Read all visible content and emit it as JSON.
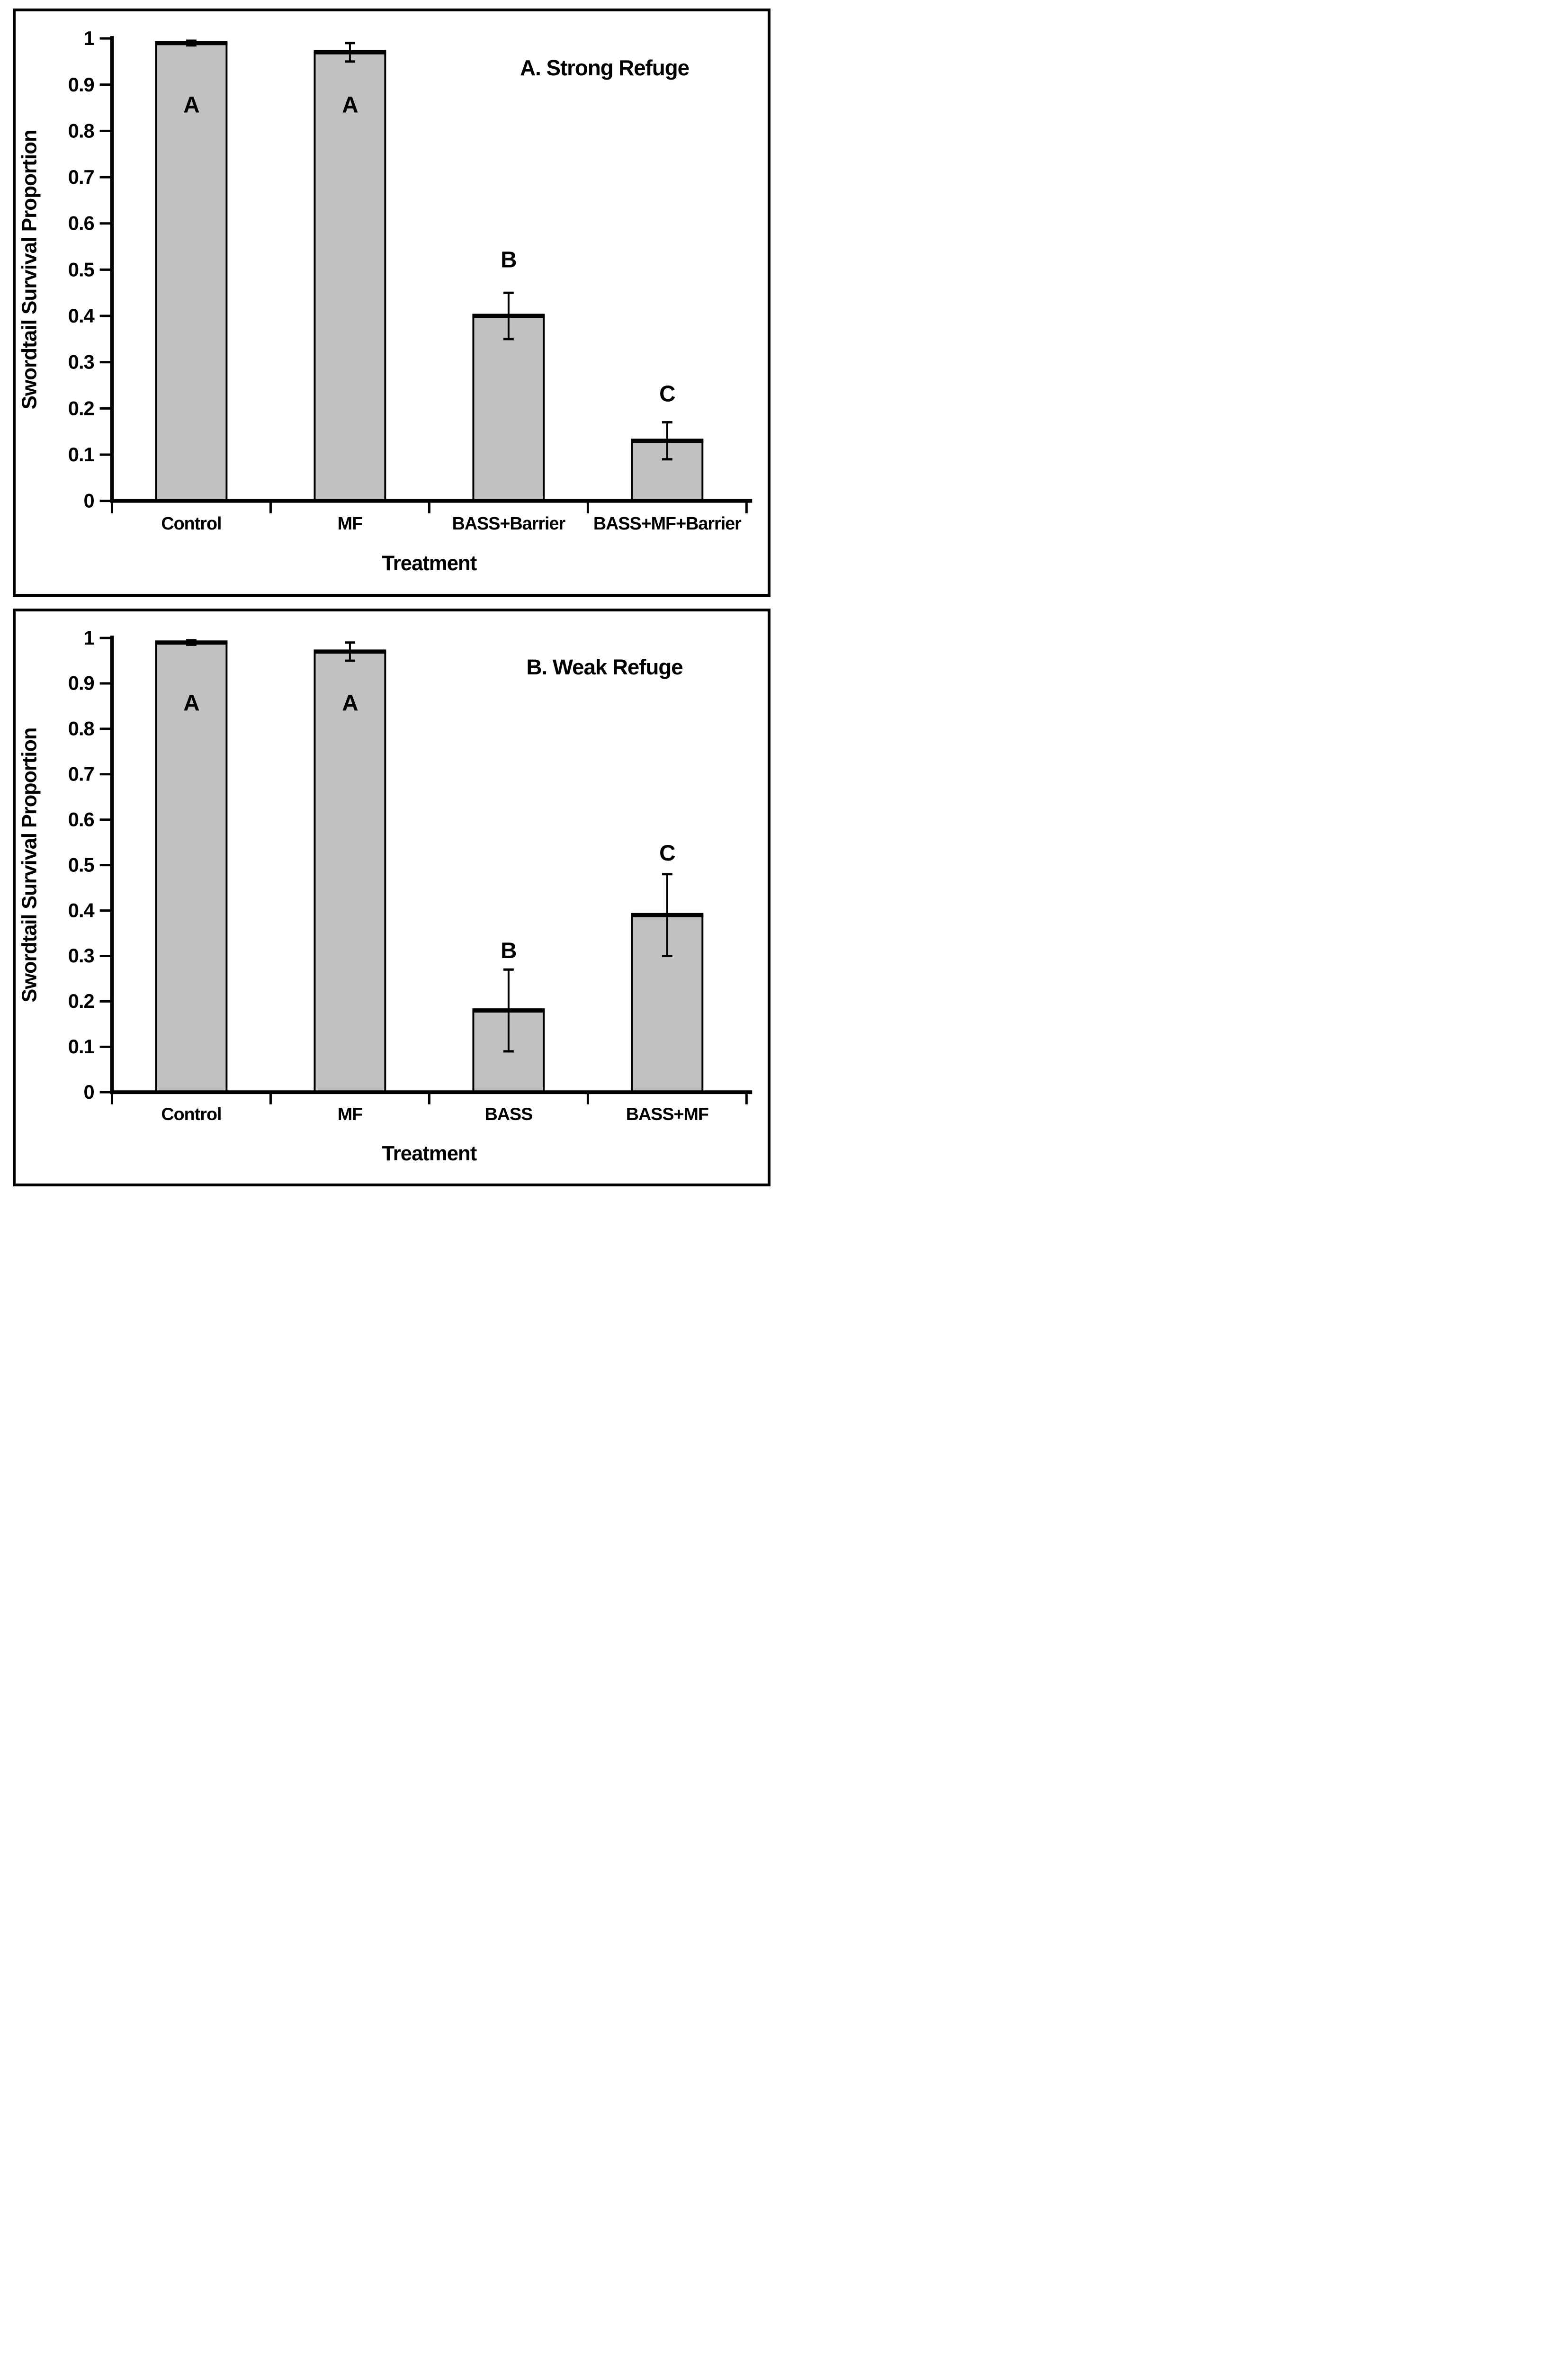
{
  "figure": {
    "background": "#ffffff",
    "colors": {
      "bar_fill": "#c1c1c3",
      "bar_stroke": "#000000",
      "axis": "#000000",
      "text": "#000000"
    }
  },
  "chart_data": [
    {
      "type": "bar",
      "panel_label": "A. Strong Refuge",
      "xlabel": "Treatment",
      "ylabel": "Swordtail Survival Proportion",
      "ylim": [
        0,
        1
      ],
      "grid": false,
      "yticks": [
        "0",
        "0.1",
        "0.2",
        "0.3",
        "0.4",
        "0.5",
        "0.6",
        "0.7",
        "0.8",
        "0.9",
        "1"
      ],
      "categories": [
        "Control",
        "MF",
        "BASS+Barrier",
        "BASS+MF+Barrier"
      ],
      "values": [
        0.99,
        0.97,
        0.4,
        0.13
      ],
      "error_upper": [
        0.995,
        0.99,
        0.45,
        0.17
      ],
      "error_lower": [
        0.985,
        0.95,
        0.35,
        0.09
      ],
      "sig_letters": [
        "A",
        "A",
        "B",
        "C"
      ],
      "sig_letter_baseline": [
        0.84,
        0.84,
        0.505,
        0.215
      ]
    },
    {
      "type": "bar",
      "panel_label": "B. Weak Refuge",
      "xlabel": "Treatment",
      "ylabel": "Swordtail Survival Proportion",
      "ylim": [
        0,
        1
      ],
      "grid": false,
      "yticks": [
        "0",
        "0.1",
        "0.2",
        "0.3",
        "0.4",
        "0.5",
        "0.6",
        "0.7",
        "0.8",
        "0.9",
        "1"
      ],
      "categories": [
        "Control",
        "MF",
        "BASS",
        "BASS+MF"
      ],
      "values": [
        0.99,
        0.97,
        0.18,
        0.39
      ],
      "error_upper": [
        0.995,
        0.99,
        0.27,
        0.48
      ],
      "error_lower": [
        0.985,
        0.95,
        0.09,
        0.3
      ],
      "sig_letters": [
        "A",
        "A",
        "B",
        "C"
      ],
      "sig_letter_baseline": [
        0.84,
        0.84,
        0.295,
        0.51
      ]
    }
  ]
}
